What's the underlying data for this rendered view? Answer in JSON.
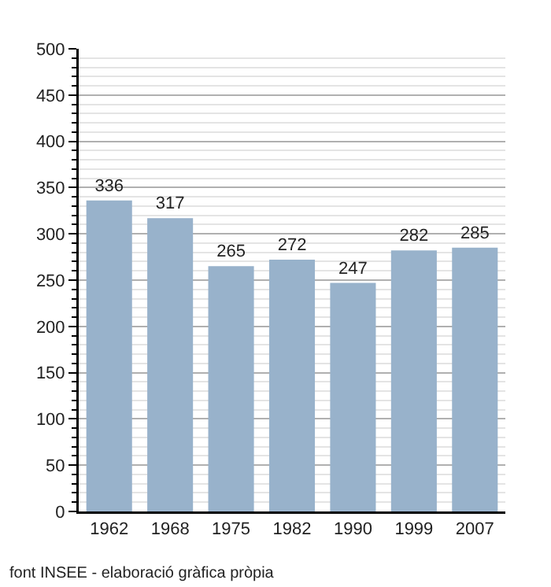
{
  "chart_data": {
    "type": "bar",
    "categories": [
      "1962",
      "1968",
      "1975",
      "1982",
      "1990",
      "1999",
      "2007"
    ],
    "values": [
      336,
      317,
      265,
      272,
      247,
      282,
      285
    ],
    "color": "#98b2cb",
    "ylim": [
      0,
      500
    ],
    "yticks": [
      0,
      {
        "value": 10,
        "label": null
      },
      {
        "value": 20,
        "label": null
      },
      {
        "value": 30,
        "label": null
      },
      {
        "value": 40,
        "label": null
      },
      50,
      {
        "value": 60,
        "label": null
      },
      {
        "value": 70,
        "label": null
      },
      {
        "value": 80,
        "label": null
      },
      {
        "value": 90,
        "label": null
      },
      100,
      {
        "value": 110,
        "label": null
      },
      {
        "value": 120,
        "label": null
      },
      {
        "value": 130,
        "label": null
      },
      {
        "value": 140,
        "label": null
      },
      150,
      {
        "value": 160,
        "label": null
      },
      {
        "value": 170,
        "label": null
      },
      {
        "value": 180,
        "label": null
      },
      {
        "value": 190,
        "label": null
      },
      200,
      {
        "value": 210,
        "label": null
      },
      {
        "value": 220,
        "label": null
      },
      {
        "value": 230,
        "label": null
      },
      {
        "value": 240,
        "label": null
      },
      250,
      {
        "value": 260,
        "label": null
      },
      {
        "value": 270,
        "label": null
      },
      {
        "value": 280,
        "label": null
      },
      {
        "value": 290,
        "label": null
      },
      300,
      {
        "value": 310,
        "label": null
      },
      {
        "value": 320,
        "label": null
      },
      {
        "value": 330,
        "label": null
      },
      {
        "value": 340,
        "label": null
      },
      350,
      {
        "value": 360,
        "label": null
      },
      {
        "value": 370,
        "label": null
      },
      {
        "value": 380,
        "label": null
      },
      {
        "value": 390,
        "label": null
      },
      400,
      {
        "value": 410,
        "label": null
      },
      {
        "value": 420,
        "label": null
      },
      {
        "value": 430,
        "label": null
      },
      {
        "value": 440,
        "label": null
      },
      450,
      {
        "value": 460,
        "label": null
      },
      {
        "value": 470,
        "label": null
      },
      {
        "value": 480,
        "label": null
      },
      {
        "value": 490,
        "label": null
      },
      500
    ],
    "grid": true,
    "data_labels": true,
    "annotations": [
      "font INSEE - elaboració gràfica pròpia"
    ]
  }
}
